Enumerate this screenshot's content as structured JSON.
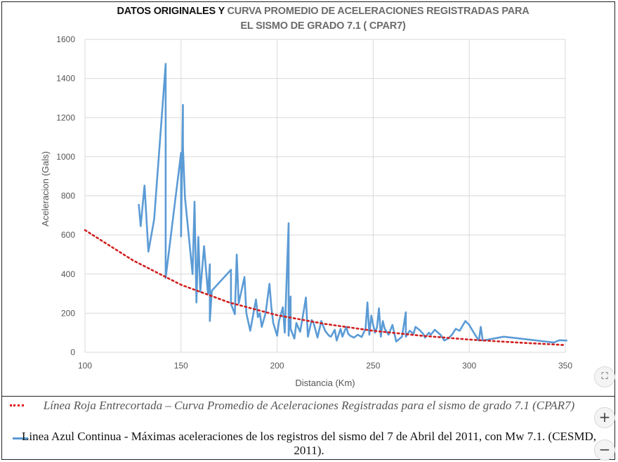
{
  "header": {
    "title_bold": "DATOS ORIGINALES Y ",
    "title_gray": "CURVA PROMEDIO DE ACELERACIONES REGISTRADAS PARA",
    "title_line2": "EL SISMO DE GRADO 7.1 ( CPAR7)"
  },
  "caption": {
    "red_line": "Línea Roja Entrecortada – Curva Promedio de Aceleraciones Registradas para el sismo de grado 7.1 (CPAR7)",
    "blue_line": "Linea Azul Continua -  Máximas aceleraciones de los registros  del sismo del 7 de Abril del 2011, con Mw 7.1.  (CESMD, 2011)."
  },
  "controls": {
    "fullscreen_icon": "fullscreen-icon",
    "zoom_in": "+",
    "zoom_out": "−"
  },
  "colors": {
    "blue_series": "#5b9bd5",
    "red_series": "#d11f1f",
    "grid": "#d9d9d9"
  },
  "chart_data": {
    "type": "line",
    "title": "DATOS ORIGINALES Y CURVA PROMEDIO DE ACELERACIONES REGISTRADAS PARA EL SISMO DE GRADO 7.1 ( CPAR7)",
    "xlabel": "Distancia (Km)",
    "ylabel": "Aceleracion (Gals)",
    "xlim": [
      100,
      350
    ],
    "ylim": [
      0,
      1600
    ],
    "xticks": [
      100,
      150,
      200,
      250,
      300,
      350
    ],
    "yticks": [
      0,
      200,
      400,
      600,
      800,
      1000,
      1200,
      1400,
      1600
    ],
    "grid": true,
    "series": [
      {
        "style": "solid",
        "color": "#5b9bd5",
        "x": [
          128,
          129,
          131,
          133,
          136,
          142,
          142,
          150,
          150,
          151,
          151,
          152,
          156,
          157,
          158,
          159,
          160,
          162,
          164,
          165,
          165,
          166,
          176,
          176,
          178,
          179,
          180,
          183,
          184,
          186,
          189,
          190,
          191,
          192,
          194,
          196,
          197,
          198,
          200,
          201,
          203,
          204,
          206,
          206,
          207,
          207,
          209,
          210,
          212,
          214,
          215,
          216,
          218,
          219,
          221,
          223,
          225,
          227,
          228,
          230,
          231,
          233,
          234,
          236,
          237,
          238,
          240,
          242,
          244,
          246,
          247,
          248,
          249,
          250,
          251,
          252,
          253,
          254,
          255,
          256,
          258,
          260,
          262,
          265,
          267,
          267,
          269,
          271,
          272,
          274,
          276,
          277,
          279,
          280,
          282,
          285,
          287,
          289,
          291,
          293,
          295,
          298,
          300,
          303,
          305,
          306,
          307,
          318,
          344,
          347,
          351
        ],
        "y": [
          758,
          645,
          853,
          515,
          680,
          1475,
          380,
          1020,
          593,
          1265,
          1050,
          795,
          400,
          770,
          255,
          590,
          310,
          543,
          300,
          450,
          160,
          315,
          422,
          248,
          195,
          500,
          250,
          385,
          200,
          110,
          270,
          180,
          200,
          130,
          200,
          350,
          230,
          150,
          85,
          160,
          230,
          100,
          660,
          85,
          285,
          120,
          70,
          150,
          105,
          220,
          280,
          80,
          165,
          150,
          75,
          160,
          110,
          85,
          80,
          115,
          60,
          120,
          80,
          130,
          95,
          85,
          75,
          90,
          78,
          120,
          255,
          90,
          188,
          140,
          100,
          130,
          225,
          80,
          160,
          120,
          90,
          140,
          55,
          80,
          205,
          80,
          110,
          95,
          130,
          115,
          95,
          75,
          100,
          90,
          115,
          90,
          60,
          70,
          90,
          120,
          110,
          160,
          140,
          90,
          60,
          130,
          60,
          80,
          50,
          62,
          60
        ]
      },
      {
        "style": "dotted",
        "color": "#d11f1f",
        "x": [
          100,
          125,
          150,
          175,
          200,
          225,
          250,
          275,
          300,
          325,
          350
        ],
        "y": [
          625,
          470,
          345,
          255,
          190,
          145,
          110,
          85,
          65,
          50,
          37
        ]
      }
    ]
  }
}
